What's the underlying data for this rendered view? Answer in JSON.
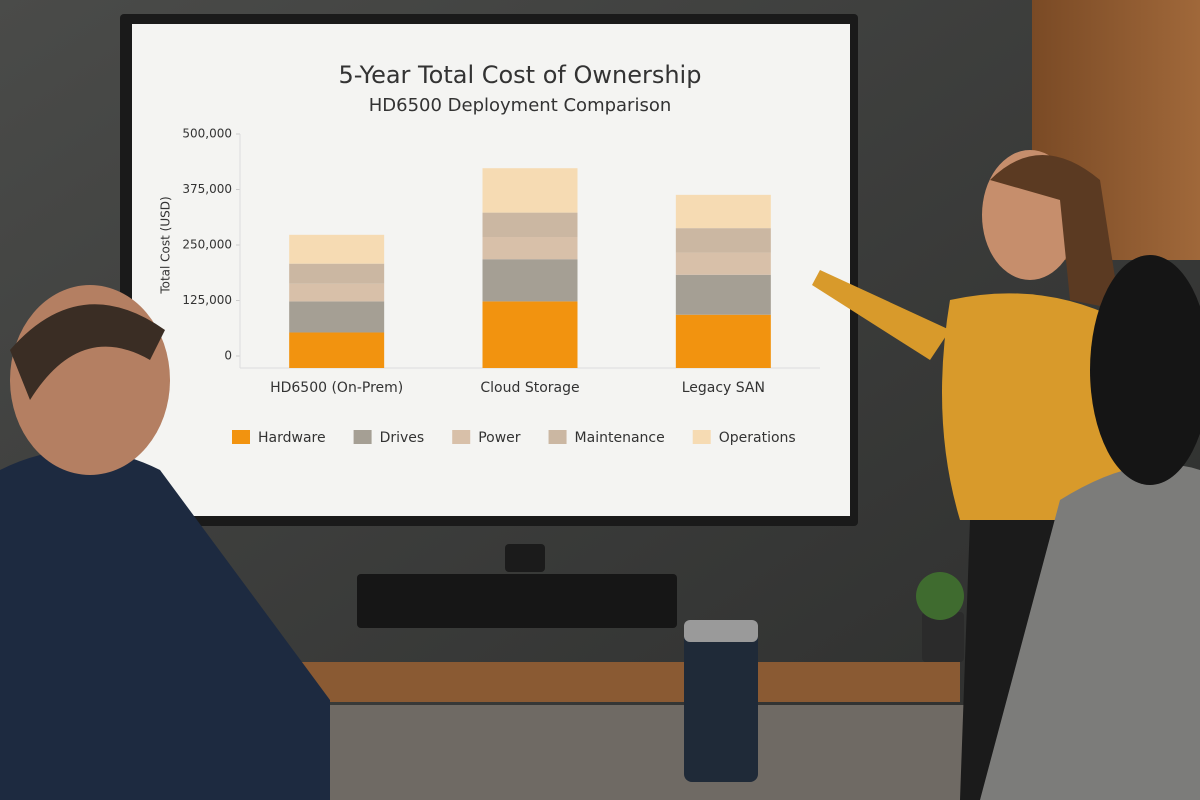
{
  "chart_data": {
    "type": "stacked_bar",
    "title": "5-Year Total Cost of Ownership",
    "subtitle": "HD6500 Deployment Comparison",
    "y_label": "Total Cost (USD)",
    "categories": [
      "HD6500 (On-Prem)",
      "Cloud Storage",
      "Legacy SAN"
    ],
    "series": [
      {
        "name": "Hardware",
        "color": "#f2930f",
        "values": [
          80000,
          150000,
          120000
        ]
      },
      {
        "name": "Drives",
        "color": "#a59f94",
        "values": [
          70000,
          95000,
          90000
        ]
      },
      {
        "name": "Power",
        "color": "#d8c0a9",
        "values": [
          40000,
          50000,
          50000
        ]
      },
      {
        "name": "Maintenance",
        "color": "#cbb7a2",
        "values": [
          45000,
          55000,
          55000
        ]
      },
      {
        "name": "Operations",
        "color": "#f6dbb3",
        "values": [
          65000,
          100000,
          75000
        ]
      }
    ],
    "ylim": [
      0,
      500000
    ],
    "yticks": [
      0,
      {
        "value": 125000,
        "label": "125,000"
      },
      {
        "value": 250000,
        "label": "250,000"
      },
      {
        "value": 375000,
        "label": "375,000"
      },
      {
        "value": 500000,
        "label": "500,000"
      }
    ],
    "legend": "bottom"
  }
}
